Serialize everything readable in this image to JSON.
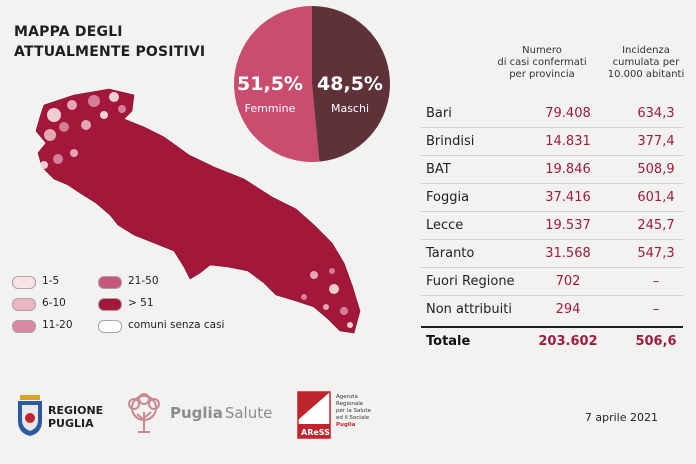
{
  "title_lines": [
    "MAPPA DEGLI",
    "ATTUALMENTE POSITIVI"
  ],
  "gender": {
    "female": {
      "pct": "51,5%",
      "label": "Femmine",
      "value": 51.5,
      "color": "#c84d6e"
    },
    "male": {
      "pct": "48,5%",
      "label": "Maschi",
      "value": 48.5,
      "color": "#5e3238"
    }
  },
  "table": {
    "header_cases": [
      "Numero",
      "di casi confermati",
      "per provincia"
    ],
    "header_incidence": [
      "Incidenza",
      "cumulata per",
      "10.000 abitanti"
    ],
    "rows": [
      {
        "name": "Bari",
        "cases": "79.408",
        "incidence": "634,3"
      },
      {
        "name": "Brindisi",
        "cases": "14.831",
        "incidence": "377,4"
      },
      {
        "name": "BAT",
        "cases": "19.846",
        "incidence": "508,9"
      },
      {
        "name": "Foggia",
        "cases": "37.416",
        "incidence": "601,4"
      },
      {
        "name": "Lecce",
        "cases": "19.537",
        "incidence": "245,7"
      },
      {
        "name": "Taranto",
        "cases": "31.568",
        "incidence": "547,3"
      },
      {
        "name": "Fuori Regione",
        "cases": "702",
        "incidence": "–"
      },
      {
        "name": "Non attribuiti",
        "cases": "294",
        "incidence": "–"
      }
    ],
    "total": {
      "name": "Totale",
      "cases": "203.602",
      "incidence": "506,6"
    }
  },
  "legend": [
    {
      "label": "1-5",
      "color": "#f6e3e5"
    },
    {
      "label": "6-10",
      "color": "#ebb6c3"
    },
    {
      "label": "11-20",
      "color": "#d989a4"
    },
    {
      "label": "21-50",
      "color": "#c7577a"
    },
    {
      "label": "> 51",
      "color": "#a3173b"
    },
    {
      "label": "comuni senza casi",
      "color": "#ffffff"
    }
  ],
  "map_color": "#a3173b",
  "logos": {
    "regione_lines": [
      "REGIONE",
      "PUGLIA"
    ],
    "puglia_salute": [
      "Puglia",
      "Salute"
    ],
    "aress": "AReSS",
    "aress_lines": [
      "Agenzia",
      "Regionale",
      "per la Salute",
      "ed il Sociale",
      "Puglia"
    ]
  },
  "date": "7 aprile 2021",
  "chart_data": {
    "type": "pie",
    "title": "MAPPA DEGLI ATTUALMENTE POSITIVI",
    "categories": [
      "Femmine",
      "Maschi"
    ],
    "values": [
      51.5,
      48.5
    ],
    "table": {
      "columns": [
        "Numero di casi confermati per provincia",
        "Incidenza cumulata per 10.000 abitanti"
      ],
      "rows": [
        [
          "Bari",
          79408,
          634.3
        ],
        [
          "Brindisi",
          14831,
          377.4
        ],
        [
          "BAT",
          19846,
          508.9
        ],
        [
          "Foggia",
          37416,
          601.4
        ],
        [
          "Lecce",
          19537,
          245.7
        ],
        [
          "Taranto",
          31568,
          547.3
        ],
        [
          "Fuori Regione",
          702,
          null
        ],
        [
          "Non attribuiti",
          294,
          null
        ],
        [
          "Totale",
          203602,
          506.6
        ]
      ]
    }
  }
}
